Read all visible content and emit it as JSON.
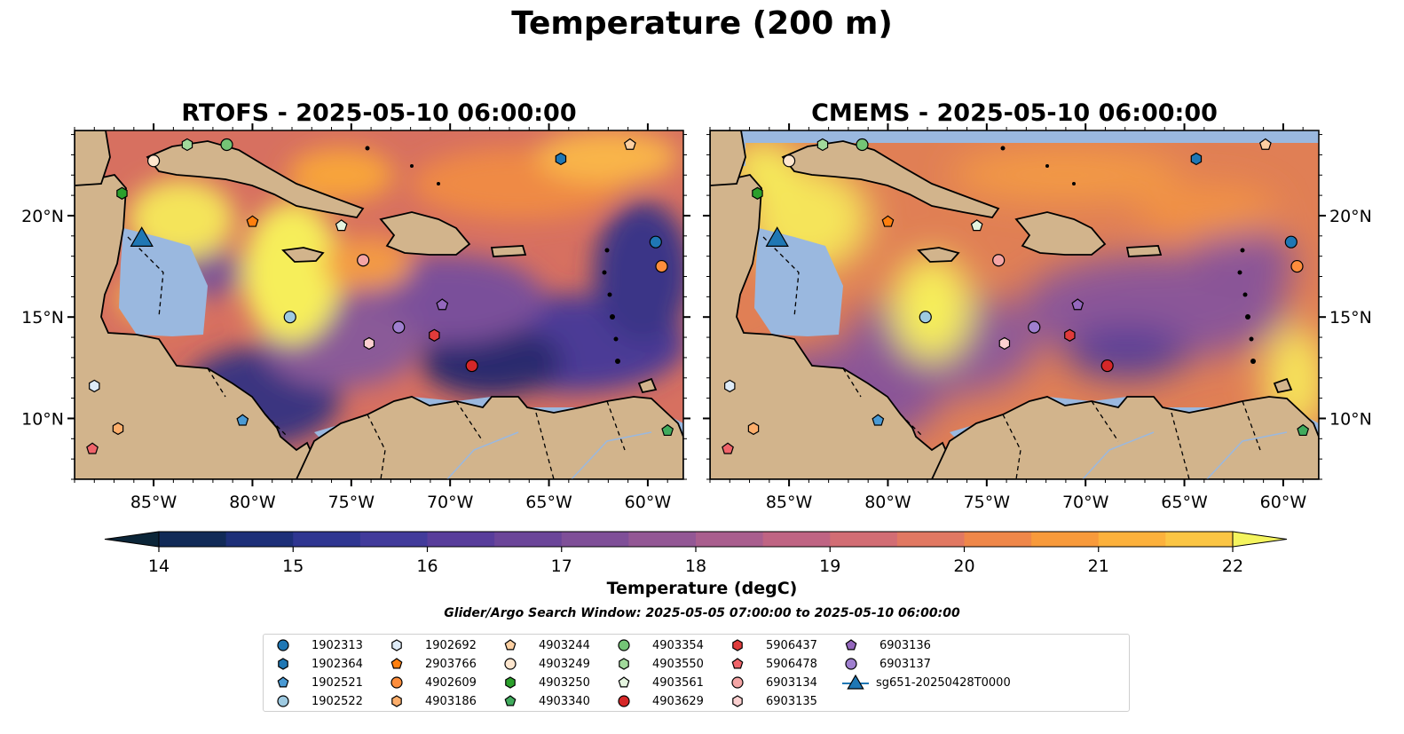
{
  "title": "Temperature (200 m)",
  "panels": [
    {
      "title": "RTOFS - 2025-05-10 06:00:00"
    },
    {
      "title": "CMEMS - 2025-05-10 06:00:00"
    }
  ],
  "map": {
    "lon_range": [
      -89,
      -58.2
    ],
    "lat_range": [
      7.0,
      24.2
    ],
    "lon_ticks": [
      "85°W",
      "80°W",
      "75°W",
      "70°W",
      "65°W",
      "60°W"
    ],
    "lat_ticks": [
      "20°N",
      "15°N",
      "10°N"
    ],
    "land_color": "#d2b48c",
    "shallow_color": "#9ab8df"
  },
  "colorbar": {
    "label": "Temperature (degC)",
    "ticks": [
      "14",
      "15",
      "16",
      "17",
      "18",
      "19",
      "20",
      "21",
      "22"
    ],
    "range": [
      14,
      22
    ],
    "colormap": "thermal (dark navy → purple → orange → yellow)"
  },
  "search_window": "Glider/Argo Search Window: 2025-05-05 07:00:00 to 2025-05-10 06:00:00",
  "legend": [
    {
      "label": "1902313",
      "shape": "circle",
      "color": "#1f77b4"
    },
    {
      "label": "1902364",
      "shape": "hexagon",
      "color": "#1f77b4"
    },
    {
      "label": "1902521",
      "shape": "pentagon",
      "color": "#4a9ad4"
    },
    {
      "label": "1902522",
      "shape": "circle",
      "color": "#9ecae1"
    },
    {
      "label": "1902692",
      "shape": "hexagon",
      "color": "#deebf7"
    },
    {
      "label": "2903766",
      "shape": "pentagon",
      "color": "#ff7f0e"
    },
    {
      "label": "4902609",
      "shape": "circle",
      "color": "#fd8d3c"
    },
    {
      "label": "4903186",
      "shape": "hexagon",
      "color": "#fdae6b"
    },
    {
      "label": "4903244",
      "shape": "pentagon",
      "color": "#fdd0a2"
    },
    {
      "label": "4903249",
      "shape": "circle",
      "color": "#fee6ce"
    },
    {
      "label": "4903250",
      "shape": "hexagon",
      "color": "#2ca02c"
    },
    {
      "label": "4903340",
      "shape": "pentagon",
      "color": "#41ab5d"
    },
    {
      "label": "4903354",
      "shape": "circle",
      "color": "#74c476"
    },
    {
      "label": "4903550",
      "shape": "hexagon",
      "color": "#a1d99b"
    },
    {
      "label": "4903561",
      "shape": "pentagon",
      "color": "#e5f5e0"
    },
    {
      "label": "4903629",
      "shape": "circle",
      "color": "#d62728"
    },
    {
      "label": "5906437",
      "shape": "hexagon",
      "color": "#e03b3b"
    },
    {
      "label": "5906478",
      "shape": "pentagon",
      "color": "#f0646a"
    },
    {
      "label": "6903134",
      "shape": "circle",
      "color": "#f4a5a5"
    },
    {
      "label": "6903135",
      "shape": "hexagon",
      "color": "#fbd0d0"
    },
    {
      "label": "6903136",
      "shape": "pentagon",
      "color": "#9467bd"
    },
    {
      "label": "6903137",
      "shape": "circle",
      "color": "#9f7fcf"
    },
    {
      "label": "sg651-20250428T0000",
      "shape": "triangle",
      "color": "#1f77b4"
    }
  ],
  "markers": [
    {
      "id": "4903249",
      "lon": -85.0,
      "lat": 22.7
    },
    {
      "id": "4903550",
      "lon": -83.3,
      "lat": 23.5
    },
    {
      "id": "4903354",
      "lon": -81.3,
      "lat": 23.5
    },
    {
      "id": "4903250",
      "lon": -86.6,
      "lat": 21.1
    },
    {
      "id": "2903766",
      "lon": -80.0,
      "lat": 19.7
    },
    {
      "id": "4903561",
      "lon": -75.5,
      "lat": 19.5
    },
    {
      "id": "6903134",
      "lon": -74.4,
      "lat": 17.8
    },
    {
      "id": "1902364",
      "lon": -64.4,
      "lat": 22.8
    },
    {
      "id": "4903244",
      "lon": -60.9,
      "lat": 23.5
    },
    {
      "id": "1902313",
      "lon": -59.6,
      "lat": 18.7
    },
    {
      "id": "4902609",
      "lon": -59.3,
      "lat": 17.5
    },
    {
      "id": "1902522",
      "lon": -78.1,
      "lat": 15.0
    },
    {
      "id": "6903137",
      "lon": -72.6,
      "lat": 14.5
    },
    {
      "id": "6903136",
      "lon": -70.4,
      "lat": 15.6
    },
    {
      "id": "5906437",
      "lon": -70.8,
      "lat": 14.1
    },
    {
      "id": "6903135",
      "lon": -74.1,
      "lat": 13.7
    },
    {
      "id": "4903629",
      "lon": -68.9,
      "lat": 12.6
    },
    {
      "id": "1902692",
      "lon": -88.0,
      "lat": 11.6
    },
    {
      "id": "1902521",
      "lon": -80.5,
      "lat": 9.9
    },
    {
      "id": "4903186",
      "lon": -86.8,
      "lat": 9.5
    },
    {
      "id": "5906478",
      "lon": -88.1,
      "lat": 8.5
    },
    {
      "id": "4903340",
      "lon": -59.0,
      "lat": 9.4
    },
    {
      "id": "sg651-20250428T0000",
      "lon": -85.6,
      "lat": 18.8
    }
  ]
}
